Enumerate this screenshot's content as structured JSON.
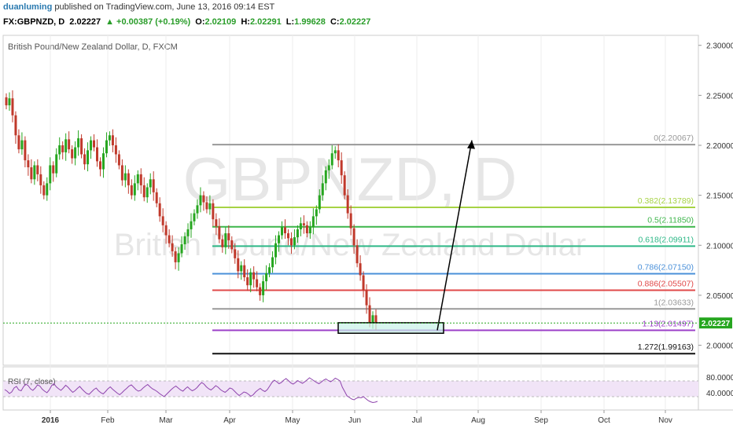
{
  "header": {
    "author": "duanluming",
    "published_text": "published on TradingView.com, June 13, 2016 09:14 EST",
    "symbol": "FX:GBPNZD, D",
    "last": "2.02227",
    "change": "+0.00387 (+0.19%)",
    "o_label": "O:",
    "o_value": "2.02109",
    "h_label": "H:",
    "h_value": "2.02291",
    "l_label": "L:",
    "l_value": "1.99628",
    "c_label": "C:",
    "c_value": "2.02227"
  },
  "colors": {
    "up": "#26a61f",
    "down": "#c0392b",
    "rsi": "#8e44ad"
  },
  "chart_data": {
    "type": "candlestick",
    "title": "British Pound/New Zealand Dollar, D, FXCM",
    "watermark_main": "GBPNZD, D",
    "watermark_sub": "British Pound/New Zealand Dollar",
    "x_ticks": [
      "2016",
      "Feb",
      "Mar",
      "Apr",
      "May",
      "Jun",
      "Jul",
      "Aug",
      "Sep",
      "Oct",
      "Nov"
    ],
    "y_ticks": [
      "2.30000",
      "2.25000",
      "2.20000",
      "2.15000",
      "2.10000",
      "2.05000",
      "2.00000"
    ],
    "ylim": [
      1.98,
      2.31
    ],
    "last_price_label": "2.02227",
    "last_price": 2.02227,
    "fib_levels": [
      {
        "label": "0(2.20067)",
        "value": 2.20067,
        "color": "#999999"
      },
      {
        "label": "0.382(2.13789)",
        "value": 2.13789,
        "color": "#a6d344"
      },
      {
        "label": "0.5(2.11850)",
        "value": 2.1185,
        "color": "#3db54a"
      },
      {
        "label": "0.618(2.09911)",
        "value": 2.09911,
        "color": "#2eb887"
      },
      {
        "label": "0.786(2.07150)",
        "value": 2.0715,
        "color": "#4a90d9"
      },
      {
        "label": "0.886(2.05507)",
        "value": 2.05507,
        "color": "#e04848"
      },
      {
        "label": "1(2.03633)",
        "value": 2.03633,
        "color": "#999999"
      },
      {
        "label": "1.13(2.01497)",
        "value": 2.01497,
        "color": "#9b3fc8"
      },
      {
        "label": "1.272(1.99163)",
        "value": 1.99163,
        "color": "#111111"
      }
    ],
    "rsi": {
      "label": "RSI (7, close)",
      "y_ticks": [
        "80.0000",
        "40.0000"
      ],
      "band": [
        30,
        70
      ],
      "values": [
        48,
        44,
        38,
        42,
        52,
        56,
        47,
        45,
        55,
        62,
        58,
        50,
        46,
        52,
        60,
        57,
        49,
        44,
        40,
        47,
        58,
        63,
        55,
        50,
        46,
        52,
        59,
        54,
        47,
        41,
        45,
        51,
        56,
        49,
        43,
        38,
        36,
        42,
        48,
        52,
        45,
        40,
        37,
        43,
        50,
        55,
        49,
        44,
        39,
        35,
        40,
        46,
        51,
        57,
        60,
        54,
        48,
        44,
        46,
        52,
        57,
        61,
        55,
        50,
        47,
        43,
        38,
        34,
        30,
        36,
        42,
        48,
        53,
        57,
        52,
        47,
        44,
        50,
        55,
        49,
        45,
        48,
        53,
        60,
        66,
        62,
        55,
        50,
        47,
        52,
        58,
        54,
        48,
        44,
        41,
        46,
        52,
        50,
        44,
        38,
        33,
        37,
        42,
        40,
        36,
        31,
        35,
        42,
        47,
        51,
        46,
        43,
        48,
        57,
        66,
        72,
        68,
        63,
        66,
        72,
        76,
        71,
        65,
        62,
        66,
        71,
        67,
        64,
        68,
        73,
        78,
        74,
        70,
        66,
        63,
        67,
        72,
        75,
        71,
        68,
        72,
        77,
        74,
        70,
        54,
        43,
        32,
        28,
        24,
        22,
        26,
        28,
        27,
        30,
        25,
        20,
        17,
        15,
        16,
        18
      ]
    }
  }
}
